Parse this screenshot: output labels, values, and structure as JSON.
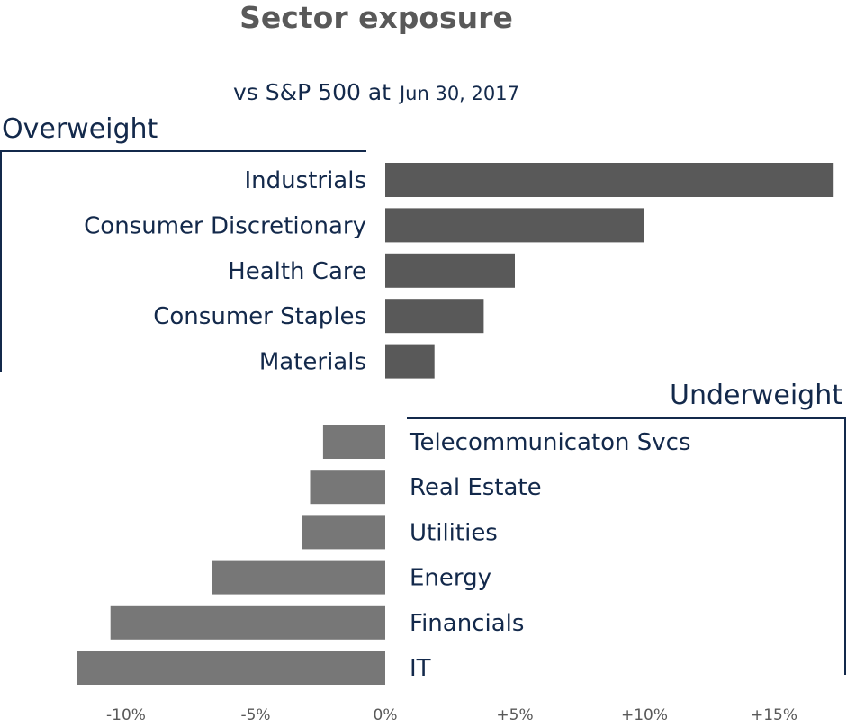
{
  "chart_data": {
    "type": "bar",
    "orientation": "horizontal",
    "title": "Sector exposure",
    "subtitle": "vs S&P 500 at",
    "subtitle_date": "Jun 30, 2017",
    "xlim": [
      -12.5,
      18
    ],
    "x_ticks": [
      -10,
      -5,
      0,
      5,
      10,
      15
    ],
    "x_tick_labels": [
      "-10%",
      "-5%",
      "0%",
      "+5%",
      "+10%",
      "+15%"
    ],
    "groups": [
      {
        "name": "Overweight",
        "color": "#595959",
        "categories": [
          "Industrials",
          "Consumer Discretionary",
          "Health Care",
          "Consumer Staples",
          "Materials"
        ],
        "values": [
          17.3,
          10.0,
          5.0,
          3.8,
          1.9
        ]
      },
      {
        "name": "Underweight",
        "color": "#777777",
        "categories": [
          "Telecommunicaton Svcs",
          "Real Estate",
          "Utilities",
          "Energy",
          "Financials",
          "IT"
        ],
        "values": [
          -2.4,
          -2.9,
          -3.2,
          -6.7,
          -10.6,
          -11.9
        ]
      }
    ],
    "grid": false
  },
  "colors": {
    "text_dark": "#13294b",
    "text_gray": "#595959"
  }
}
